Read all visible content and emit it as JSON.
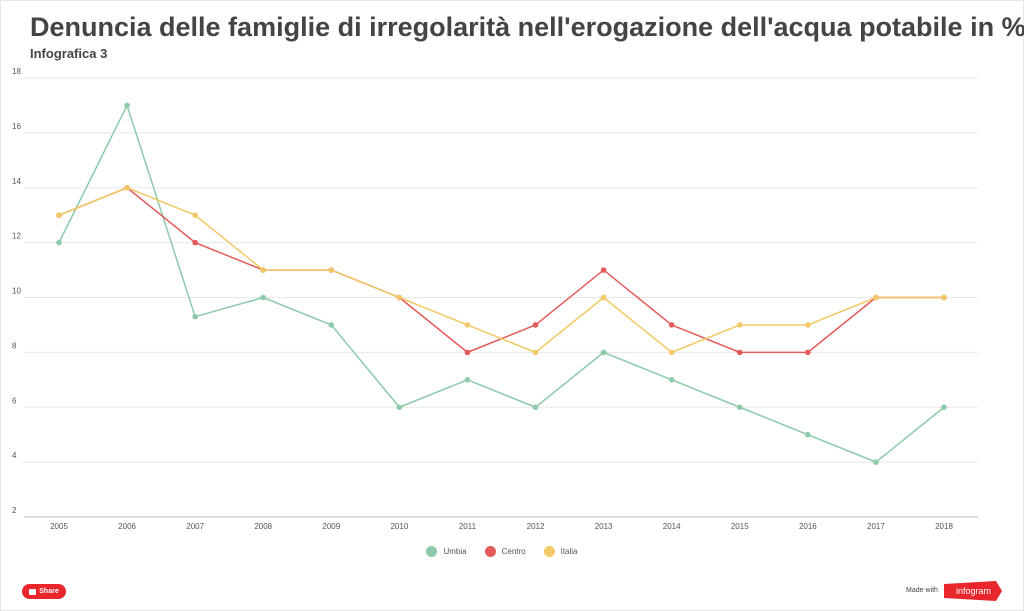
{
  "header": {
    "title": "Denuncia delle famiglie  di irregolarità nell'erogazione dell'acqua potabile in %",
    "subtitle": "Infografica 3"
  },
  "chart_data": {
    "type": "line",
    "x": [
      "2005",
      "2006",
      "2007",
      "2008",
      "2009",
      "2010",
      "2011",
      "2012",
      "2013",
      "2014",
      "2015",
      "2016",
      "2017",
      "2018"
    ],
    "series": [
      {
        "name": "Umbia",
        "color": "#8dcaa9",
        "values": [
          12,
          17,
          9.3,
          10,
          9,
          6,
          7,
          6,
          8,
          7,
          6,
          5,
          4,
          6
        ]
      },
      {
        "name": "Centro",
        "color": "#e45b5b",
        "values": [
          13,
          14,
          12,
          11,
          11,
          10,
          8,
          9,
          11,
          9,
          8,
          8,
          10,
          10
        ]
      },
      {
        "name": "Italia",
        "color": "#f2c967",
        "values": [
          13,
          14,
          13,
          11,
          11,
          10,
          9,
          8,
          10,
          8,
          9,
          9,
          10,
          10
        ]
      }
    ],
    "yticks": [
      "18",
      "16",
      "14",
      "12",
      "10",
      "8",
      "6",
      "4",
      "2"
    ],
    "ylim": [
      2,
      18
    ],
    "grid": true,
    "legend": "bottom-center"
  },
  "footer": {
    "share_label": "Share",
    "made_with": "Made with",
    "brand": "infogram"
  }
}
